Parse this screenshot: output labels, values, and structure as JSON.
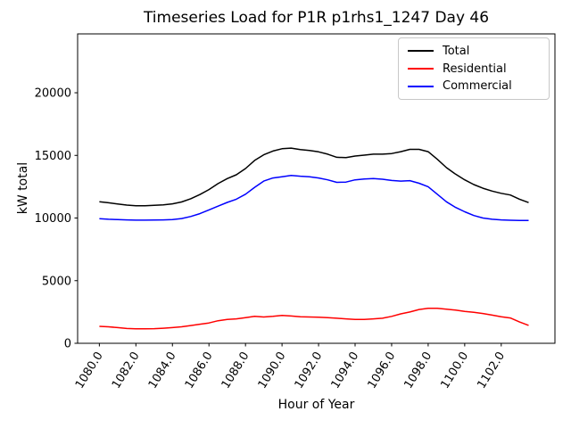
{
  "chart_data": {
    "type": "line",
    "title": "Timeseries Load for P1R p1rhs1_1247  Day 46",
    "xlabel": "Hour of Year",
    "ylabel": "kW total",
    "grid": false,
    "legend_position": "upper right",
    "xlim": [
      1078.81,
      1104.94
    ],
    "ylim": [
      0,
      24700
    ],
    "xticks": [
      1080,
      1082,
      1084,
      1086,
      1088,
      1090,
      1092,
      1094,
      1096,
      1098,
      1100,
      1102
    ],
    "xtick_labels": [
      "1080.0",
      "1082.0",
      "1084.0",
      "1086.0",
      "1088.0",
      "1090.0",
      "1092.0",
      "1094.0",
      "1096.0",
      "1098.0",
      "1100.0",
      "1102.0"
    ],
    "yticks": [
      0,
      5000,
      10000,
      15000,
      20000
    ],
    "ytick_labels": [
      "0",
      "5000",
      "10000",
      "15000",
      "20000"
    ],
    "x": [
      1080.0,
      1080.5,
      1081.0,
      1081.5,
      1082.0,
      1082.5,
      1083.0,
      1083.5,
      1084.0,
      1084.5,
      1085.0,
      1085.5,
      1086.0,
      1086.5,
      1087.0,
      1087.5,
      1088.0,
      1088.5,
      1089.0,
      1089.5,
      1090.0,
      1090.5,
      1091.0,
      1091.5,
      1092.0,
      1092.5,
      1093.0,
      1093.5,
      1094.0,
      1094.5,
      1095.0,
      1095.5,
      1096.0,
      1096.5,
      1097.0,
      1097.5,
      1098.0,
      1098.5,
      1099.0,
      1099.5,
      1100.0,
      1100.5,
      1101.0,
      1101.5,
      1102.0,
      1102.5,
      1103.0,
      1103.5
    ],
    "series": [
      {
        "name": "Total",
        "color": "#000000",
        "values": [
          11300,
          11220,
          11120,
          11030,
          10980,
          10980,
          11010,
          11050,
          11130,
          11280,
          11540,
          11870,
          12270,
          12750,
          13150,
          13450,
          13950,
          14600,
          15050,
          15350,
          15530,
          15580,
          15460,
          15400,
          15280,
          15100,
          14850,
          14820,
          14950,
          15020,
          15100,
          15100,
          15150,
          15300,
          15480,
          15480,
          15300,
          14690,
          14020,
          13500,
          13050,
          12670,
          12380,
          12150,
          11970,
          11840,
          11500,
          11230
        ]
      },
      {
        "name": "Residential",
        "color": "#ff0000",
        "values": [
          1350,
          1320,
          1250,
          1180,
          1150,
          1150,
          1170,
          1200,
          1250,
          1320,
          1420,
          1520,
          1620,
          1800,
          1900,
          1950,
          2050,
          2150,
          2100,
          2150,
          2230,
          2180,
          2120,
          2100,
          2080,
          2050,
          2000,
          1950,
          1900,
          1900,
          1950,
          2000,
          2150,
          2350,
          2500,
          2700,
          2800,
          2790,
          2720,
          2650,
          2550,
          2470,
          2380,
          2250,
          2120,
          2020,
          1700,
          1430
        ]
      },
      {
        "name": "Commercial",
        "color": "#0000ff",
        "values": [
          9950,
          9900,
          9870,
          9850,
          9830,
          9830,
          9840,
          9850,
          9880,
          9960,
          10120,
          10350,
          10650,
          10950,
          11250,
          11500,
          11900,
          12450,
          12950,
          13200,
          13300,
          13400,
          13340,
          13300,
          13200,
          13050,
          12850,
          12870,
          13050,
          13120,
          13150,
          13100,
          13000,
          12950,
          12980,
          12780,
          12500,
          11900,
          11300,
          10850,
          10500,
          10200,
          10000,
          9900,
          9850,
          9820,
          9800,
          9800
        ]
      }
    ]
  }
}
